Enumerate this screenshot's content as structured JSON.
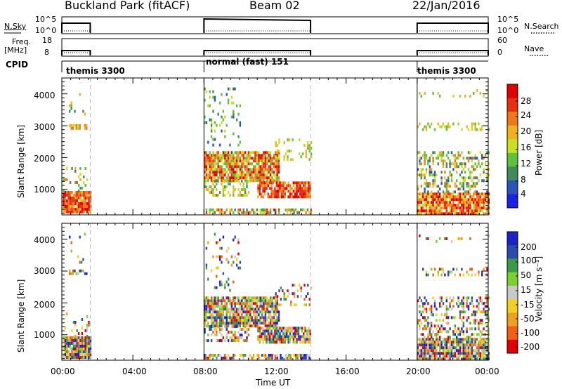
{
  "header": {
    "station": "Buckland Park (fitACF)",
    "beam": "Beam 02",
    "date": "22/Jan/2016"
  },
  "labels": {
    "nsky": "N.Sky",
    "nsky_ticks": [
      "10^5",
      "10^0"
    ],
    "nsearch": "N.Search",
    "freq_line1": "Freq.",
    "freq_line2": "[MHz]",
    "freq_ticks": [
      "18",
      "8"
    ],
    "nave": "Nave",
    "nave_ticks": [
      "60",
      "0"
    ],
    "cpid": "CPID",
    "slant_range": "Slant Range [km]",
    "time_axis": "Time UT",
    "power_label": "Power [dB]",
    "velocity_label": "Velocity [m s⁻¹]"
  },
  "cpid_segments": [
    {
      "label": "themis 3300",
      "start": 0.0,
      "end": 1.6
    },
    {
      "label": "normal (fast) 151",
      "start": 8.0,
      "end": 14.0
    },
    {
      "label": "themis 3300",
      "start": 20.0,
      "end": 24.0
    }
  ],
  "chart_data": [
    {
      "type": "heatmap",
      "name": "power",
      "xlabel": "Time UT",
      "ylabel": "Slant Range [km]",
      "x_ticks": [
        "00:00",
        "04:00",
        "08:00",
        "12:00",
        "16:00",
        "20:00",
        "00:00"
      ],
      "x_range_hours": [
        0,
        24
      ],
      "y_ticks": [
        1000,
        2000,
        3000,
        4000
      ],
      "ylim": [
        200,
        4500
      ],
      "colorbar": {
        "label": "Power [dB]",
        "ticks": [
          4,
          8,
          12,
          16,
          20,
          24,
          28
        ],
        "range": [
          0,
          32
        ]
      },
      "colors": [
        "#1a22e8",
        "#2a54b8",
        "#3f8c5a",
        "#5cc23a",
        "#c8e020",
        "#f0b020",
        "#f07818",
        "#e83010",
        "#e00000"
      ],
      "data_intervals": [
        [
          0.0,
          1.6
        ],
        [
          8.0,
          14.0
        ],
        [
          20.0,
          24.0
        ]
      ]
    },
    {
      "type": "heatmap",
      "name": "velocity",
      "xlabel": "Time UT",
      "ylabel": "Slant Range [km]",
      "x_ticks": [
        "00:00",
        "04:00",
        "08:00",
        "12:00",
        "16:00",
        "20:00",
        "00:00"
      ],
      "x_range_hours": [
        0,
        24
      ],
      "y_ticks": [
        1000,
        2000,
        3000,
        4000
      ],
      "ylim": [
        200,
        4500
      ],
      "colorbar": {
        "label": "Velocity [m s⁻¹]",
        "ticks": [
          "200",
          "100",
          "50",
          "15",
          "-15",
          "-50",
          "-100",
          "-200"
        ]
      },
      "colors": [
        "#1a22c8",
        "#2a4ab0",
        "#3a9a4a",
        "#7ad030",
        "#c8c8c8",
        "#f0d020",
        "#f0a020",
        "#f06010",
        "#e00000"
      ],
      "data_intervals": [
        [
          0.0,
          1.6
        ],
        [
          8.0,
          14.0
        ],
        [
          20.0,
          24.0
        ]
      ]
    }
  ]
}
